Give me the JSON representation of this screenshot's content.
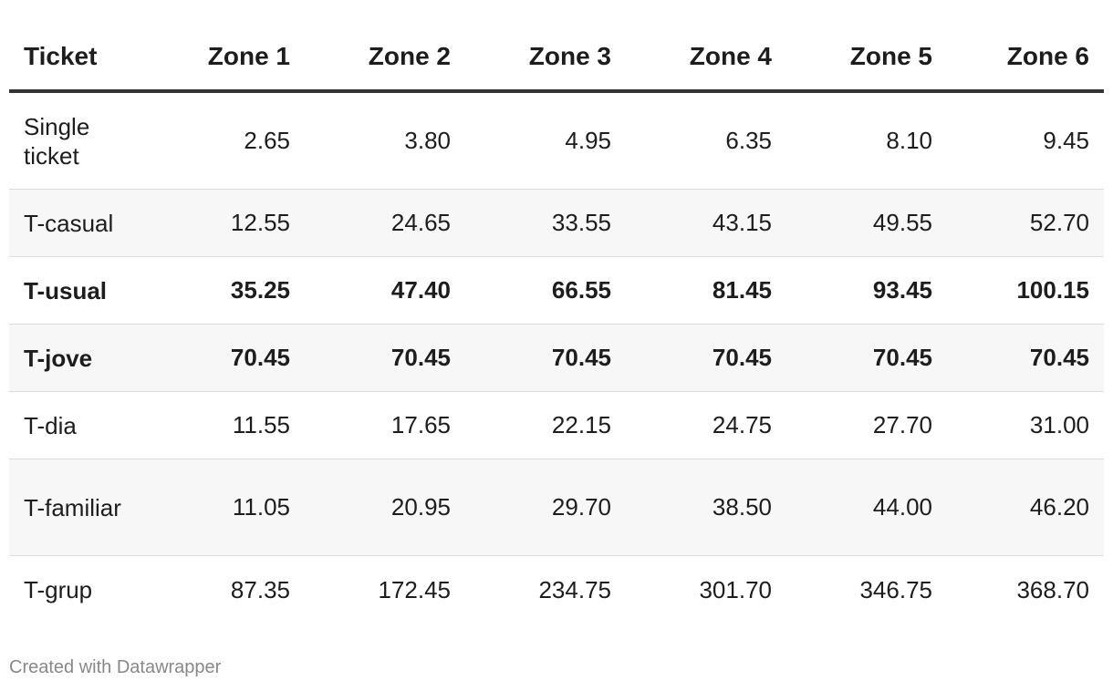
{
  "chart_data": {
    "type": "table",
    "columns": [
      "Ticket",
      "Zone 1",
      "Zone 2",
      "Zone 3",
      "Zone 4",
      "Zone 5",
      "Zone 6"
    ],
    "rows": [
      {
        "label": "Single ticket",
        "values": [
          "2.65",
          "3.80",
          "4.95",
          "6.35",
          "8.10",
          "9.45"
        ],
        "bold": false
      },
      {
        "label": "T-casual",
        "values": [
          "12.55",
          "24.65",
          "33.55",
          "43.15",
          "49.55",
          "52.70"
        ],
        "bold": false
      },
      {
        "label": "T-usual",
        "values": [
          "35.25",
          "47.40",
          "66.55",
          "81.45",
          "93.45",
          "100.15"
        ],
        "bold": true
      },
      {
        "label": "T-jove",
        "values": [
          "70.45",
          "70.45",
          "70.45",
          "70.45",
          "70.45",
          "70.45"
        ],
        "bold": true
      },
      {
        "label": "T-dia",
        "values": [
          "11.55",
          "17.65",
          "22.15",
          "24.75",
          "27.70",
          "31.00"
        ],
        "bold": false
      },
      {
        "label": "T-familiar",
        "values": [
          "11.05",
          "20.95",
          "29.70",
          "38.50",
          "44.00",
          "46.20"
        ],
        "bold": false
      },
      {
        "label": "T-grup",
        "values": [
          "87.35",
          "172.45",
          "234.75",
          "301.70",
          "346.75",
          "368.70"
        ],
        "bold": false
      }
    ]
  },
  "footer": {
    "credit": "Created with Datawrapper"
  }
}
